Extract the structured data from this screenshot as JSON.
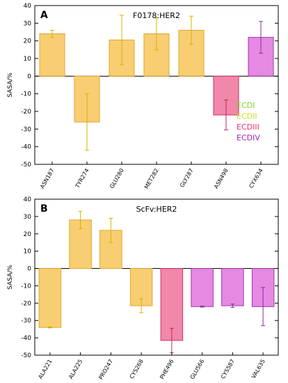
{
  "colors": {
    "ECDI": "#7ed321",
    "ECDII": "#c8dc14",
    "ECDIII": "#e8336c",
    "ECDIV": "#a020c0",
    "bar_orange_fill": "#f7c964",
    "bar_orange_stroke": "#e0a62a",
    "bar_pink_fill": "#f07aa0",
    "bar_pink_stroke": "#c8326a",
    "bar_violet_fill": "#e27ce0",
    "bar_violet_stroke": "#9a3aa8",
    "errorbar_orange": "#d8b000",
    "errorbar_pink": "#c02a60",
    "errorbar_violet": "#8a2aa0"
  },
  "legend": {
    "items": [
      {
        "label": "ECDI",
        "color_key": "ECDI"
      },
      {
        "label": "ECDII",
        "color_key": "ECDII"
      },
      {
        "label": "ECDIII",
        "color_key": "ECDIII"
      },
      {
        "label": "ECDIV",
        "color_key": "ECDIV"
      }
    ],
    "placement": "bottom-right of panel A"
  },
  "chart_data": [
    {
      "type": "bar",
      "panel": "A",
      "title": "F0178:HER2",
      "xlabel": "",
      "ylabel": "SASA/%",
      "ylim": [
        -50,
        40
      ],
      "yticks": [
        -50,
        -40,
        -30,
        -20,
        -10,
        0,
        10,
        20,
        30,
        40
      ],
      "grid": false,
      "categories": [
        "ASN187",
        "TYR274",
        "GLU280",
        "MET282",
        "GLY287",
        "ASN498",
        "CYX634"
      ],
      "values": [
        24,
        -26,
        20.5,
        24,
        26,
        -22,
        22
      ],
      "errors": [
        2,
        16,
        14,
        9,
        8,
        8.5,
        9
      ],
      "domain": [
        "ECDII",
        "ECDII",
        "ECDII",
        "ECDII",
        "ECDII",
        "ECDIII",
        "ECDIV"
      ]
    },
    {
      "type": "bar",
      "panel": "B",
      "title": "ScFv:HER2",
      "xlabel": "",
      "ylabel": "SASA/%",
      "ylim": [
        -50,
        40
      ],
      "yticks": [
        -50,
        -40,
        -30,
        -20,
        -10,
        0,
        10,
        20,
        30,
        40
      ],
      "grid": false,
      "categories": [
        "ALA221",
        "ALA225",
        "PRO247",
        "CYS268",
        "PHE496",
        "GLU566",
        "CYS587",
        "VAL635"
      ],
      "values": [
        -34,
        28,
        22,
        -21.5,
        -41.5,
        -22,
        -21.5,
        -22
      ],
      "errors": [
        0.3,
        5,
        7,
        4,
        7,
        0.3,
        1,
        11
      ],
      "domain": [
        "ECDII",
        "ECDII",
        "ECDII",
        "ECDII",
        "ECDIII",
        "ECDIV",
        "ECDIV",
        "ECDIV"
      ]
    }
  ]
}
